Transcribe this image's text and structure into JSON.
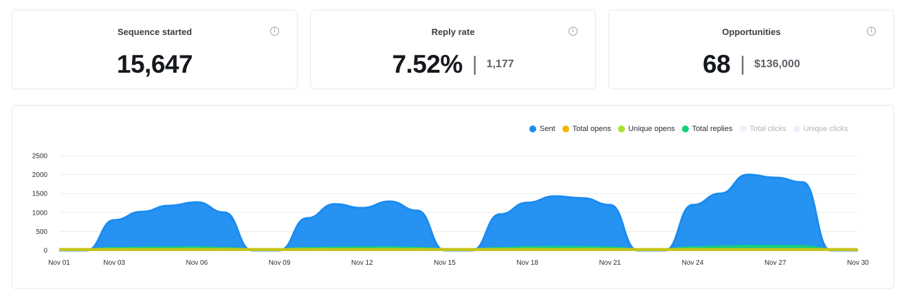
{
  "cards": [
    {
      "title": "Sequence started",
      "value": "15,647",
      "sub": ""
    },
    {
      "title": "Reply rate",
      "value": "7.52%",
      "sub": "1,177"
    },
    {
      "title": "Opportunities",
      "value": "68",
      "sub": "$136,000"
    }
  ],
  "info_icon_glyph": "i",
  "separator": "|",
  "chart_data": {
    "type": "area",
    "x_ticks": [
      "Nov 01",
      "Nov 03",
      "Nov 06",
      "Nov 09",
      "Nov 12",
      "Nov 15",
      "Nov 18",
      "Nov 21",
      "Nov 24",
      "Nov 27",
      "Nov 30"
    ],
    "y_ticks": [
      "0",
      "500",
      "1000",
      "1500",
      "2000",
      "2500"
    ],
    "ylim": [
      0,
      2500
    ],
    "grid": true,
    "legend_position": "top-right",
    "series": [
      {
        "name": "Sent",
        "color": "#1a8cf0",
        "visible": true,
        "x": [
          1,
          2,
          3,
          4,
          5,
          6,
          7,
          8,
          9,
          10,
          11,
          12,
          13,
          14,
          15,
          16,
          17,
          18,
          19,
          20,
          21,
          22,
          23,
          24,
          25,
          26,
          27,
          28,
          29,
          30
        ],
        "y": [
          0,
          0,
          800,
          1020,
          1180,
          1270,
          1000,
          0,
          0,
          850,
          1220,
          1120,
          1290,
          1050,
          0,
          0,
          950,
          1260,
          1430,
          1380,
          1200,
          0,
          0,
          1200,
          1500,
          2000,
          1920,
          1800,
          0,
          0
        ]
      },
      {
        "name": "Total opens",
        "color": "#f5b400",
        "visible": true,
        "x": [
          1,
          2,
          3,
          4,
          5,
          6,
          7,
          8,
          9,
          10,
          11,
          12,
          13,
          14,
          15,
          16,
          17,
          18,
          19,
          20,
          21,
          22,
          23,
          24,
          25,
          26,
          27,
          28,
          29,
          30
        ],
        "y": [
          40,
          40,
          40,
          40,
          40,
          40,
          40,
          40,
          40,
          40,
          40,
          40,
          40,
          40,
          40,
          40,
          40,
          40,
          40,
          40,
          40,
          40,
          40,
          40,
          40,
          40,
          40,
          40,
          40,
          40
        ]
      },
      {
        "name": "Unique opens",
        "color": "#a6e22e",
        "visible": true,
        "x": [
          1,
          2,
          3,
          4,
          5,
          6,
          7,
          8,
          9,
          10,
          11,
          12,
          13,
          14,
          15,
          16,
          17,
          18,
          19,
          20,
          21,
          22,
          23,
          24,
          25,
          26,
          27,
          28,
          29,
          30
        ],
        "y": [
          40,
          40,
          40,
          40,
          40,
          40,
          40,
          40,
          40,
          40,
          40,
          40,
          40,
          40,
          40,
          40,
          40,
          40,
          40,
          40,
          40,
          40,
          40,
          40,
          40,
          40,
          40,
          40,
          40,
          40
        ]
      },
      {
        "name": "Total replies",
        "color": "#12d17a",
        "visible": true,
        "x": [
          1,
          2,
          3,
          4,
          5,
          6,
          7,
          8,
          9,
          10,
          11,
          12,
          13,
          14,
          15,
          16,
          17,
          18,
          19,
          20,
          21,
          22,
          23,
          24,
          25,
          26,
          27,
          28,
          29,
          30
        ],
        "y": [
          40,
          40,
          70,
          80,
          85,
          90,
          70,
          40,
          40,
          70,
          80,
          85,
          90,
          75,
          40,
          40,
          70,
          90,
          100,
          95,
          85,
          40,
          40,
          90,
          110,
          130,
          125,
          120,
          40,
          40
        ]
      },
      {
        "name": "Total clicks",
        "color": "#e6f1fb",
        "visible": false,
        "x": [],
        "y": []
      },
      {
        "name": "Unique clicks",
        "color": "#e6f1fb",
        "visible": false,
        "x": [],
        "y": []
      }
    ]
  }
}
